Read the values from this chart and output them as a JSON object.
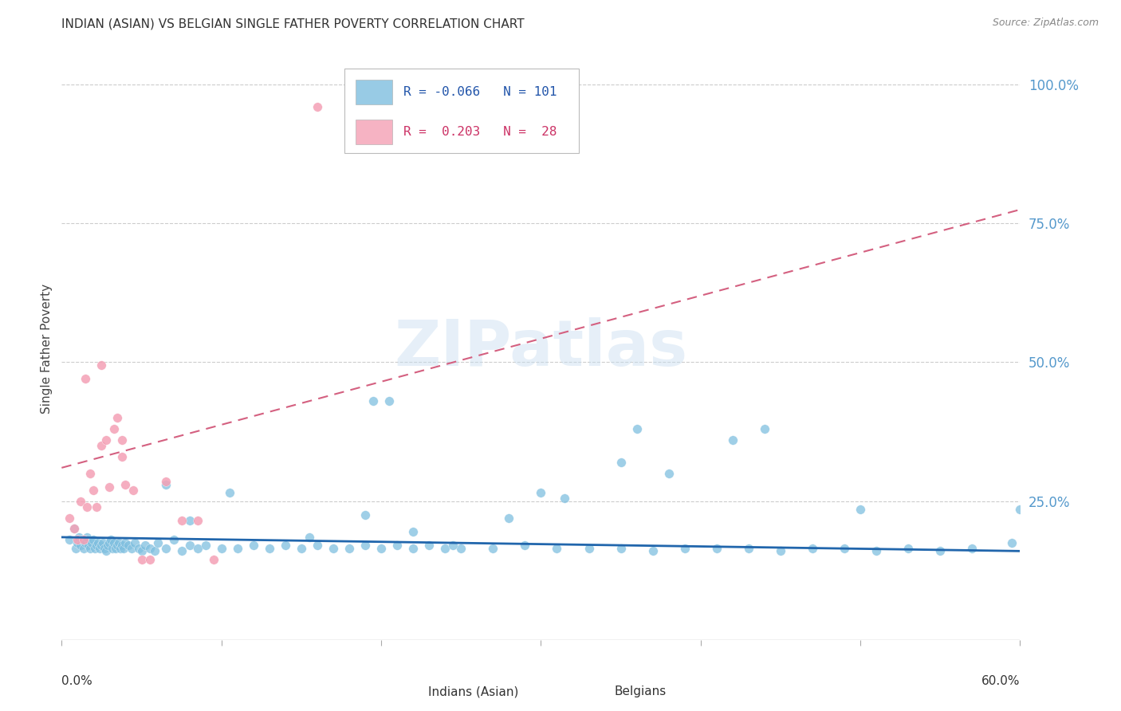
{
  "title": "INDIAN (ASIAN) VS BELGIAN SINGLE FATHER POVERTY CORRELATION CHART",
  "source": "Source: ZipAtlas.com",
  "ylabel": "Single Father Poverty",
  "blue_color": "#7fbfdf",
  "pink_color": "#f4a0b5",
  "trend_blue_color": "#2166ac",
  "trend_pink_color": "#d46080",
  "background_color": "#ffffff",
  "watermark": "ZIPatlas",
  "legend_R1": "-0.066",
  "legend_N1": "101",
  "legend_R2": "0.203",
  "legend_N2": "28",
  "legend_label1": "Indians (Asian)",
  "legend_label2": "Belgians",
  "ytick_values": [
    0.25,
    0.5,
    0.75,
    1.0
  ],
  "ytick_labels": [
    "25.0%",
    "50.0%",
    "75.0%",
    "100.0%"
  ],
  "xlim": [
    0.0,
    0.6
  ],
  "ylim": [
    0.0,
    1.05
  ],
  "blue_x": [
    0.005,
    0.008,
    0.009,
    0.01,
    0.011,
    0.012,
    0.013,
    0.014,
    0.015,
    0.016,
    0.017,
    0.018,
    0.019,
    0.02,
    0.021,
    0.022,
    0.023,
    0.024,
    0.025,
    0.026,
    0.027,
    0.028,
    0.029,
    0.03,
    0.031,
    0.032,
    0.033,
    0.034,
    0.035,
    0.036,
    0.037,
    0.038,
    0.039,
    0.04,
    0.042,
    0.044,
    0.046,
    0.048,
    0.05,
    0.052,
    0.055,
    0.058,
    0.06,
    0.065,
    0.07,
    0.075,
    0.08,
    0.085,
    0.09,
    0.1,
    0.11,
    0.12,
    0.13,
    0.14,
    0.15,
    0.16,
    0.17,
    0.18,
    0.19,
    0.2,
    0.21,
    0.22,
    0.23,
    0.24,
    0.25,
    0.27,
    0.29,
    0.31,
    0.33,
    0.35,
    0.37,
    0.39,
    0.41,
    0.43,
    0.45,
    0.47,
    0.49,
    0.51,
    0.53,
    0.55,
    0.195,
    0.205,
    0.3,
    0.36,
    0.28,
    0.42,
    0.38,
    0.44,
    0.5,
    0.35,
    0.6,
    0.595,
    0.57,
    0.065,
    0.105,
    0.155,
    0.08,
    0.22,
    0.19,
    0.315,
    0.245
  ],
  "blue_y": [
    0.18,
    0.2,
    0.165,
    0.175,
    0.185,
    0.17,
    0.18,
    0.165,
    0.175,
    0.185,
    0.17,
    0.165,
    0.175,
    0.18,
    0.165,
    0.17,
    0.175,
    0.165,
    0.17,
    0.175,
    0.165,
    0.16,
    0.17,
    0.175,
    0.18,
    0.165,
    0.175,
    0.165,
    0.17,
    0.175,
    0.165,
    0.17,
    0.165,
    0.175,
    0.17,
    0.165,
    0.175,
    0.165,
    0.16,
    0.17,
    0.165,
    0.16,
    0.175,
    0.165,
    0.18,
    0.16,
    0.17,
    0.165,
    0.17,
    0.165,
    0.165,
    0.17,
    0.165,
    0.17,
    0.165,
    0.17,
    0.165,
    0.165,
    0.17,
    0.165,
    0.17,
    0.165,
    0.17,
    0.165,
    0.165,
    0.165,
    0.17,
    0.165,
    0.165,
    0.165,
    0.16,
    0.165,
    0.165,
    0.165,
    0.16,
    0.165,
    0.165,
    0.16,
    0.165,
    0.16,
    0.43,
    0.43,
    0.265,
    0.38,
    0.22,
    0.36,
    0.3,
    0.38,
    0.235,
    0.32,
    0.235,
    0.175,
    0.165,
    0.28,
    0.265,
    0.185,
    0.215,
    0.195,
    0.225,
    0.255,
    0.17
  ],
  "pink_x": [
    0.005,
    0.008,
    0.01,
    0.012,
    0.014,
    0.016,
    0.018,
    0.02,
    0.022,
    0.025,
    0.028,
    0.03,
    0.033,
    0.035,
    0.038,
    0.04,
    0.045,
    0.05,
    0.055,
    0.065,
    0.075,
    0.085,
    0.095,
    0.015,
    0.025,
    0.038,
    0.16,
    0.22
  ],
  "pink_y": [
    0.22,
    0.2,
    0.18,
    0.25,
    0.18,
    0.24,
    0.3,
    0.27,
    0.24,
    0.35,
    0.36,
    0.275,
    0.38,
    0.4,
    0.33,
    0.28,
    0.27,
    0.145,
    0.145,
    0.285,
    0.215,
    0.215,
    0.145,
    0.47,
    0.495,
    0.36,
    0.96,
    0.965
  ],
  "blue_trend_x": [
    0.0,
    0.6
  ],
  "blue_trend_y": [
    0.185,
    0.16
  ],
  "pink_trend_x": [
    0.0,
    0.6
  ],
  "pink_trend_y": [
    0.31,
    0.775
  ]
}
